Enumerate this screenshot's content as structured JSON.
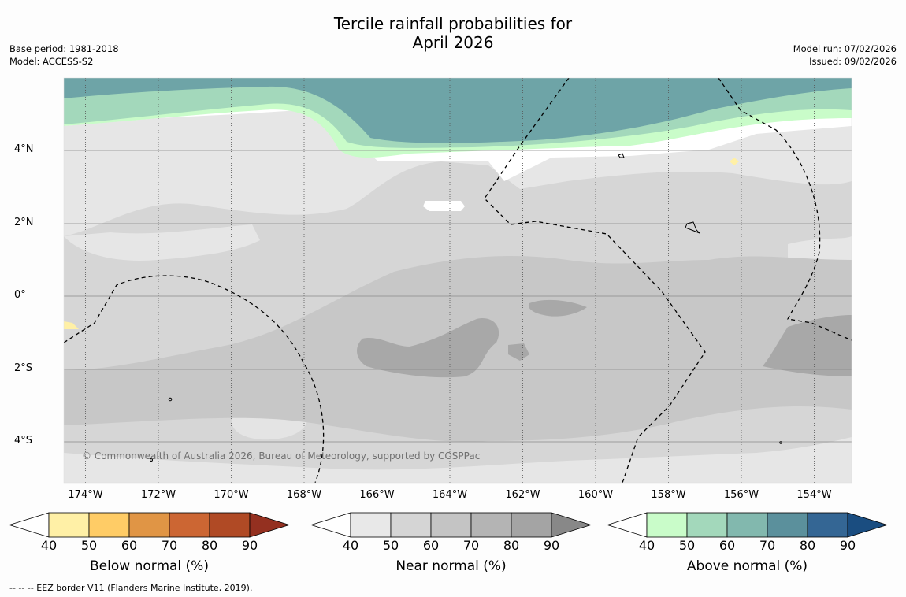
{
  "title_line1": "Tercile rainfall probabilities for",
  "title_line2": "April 2026",
  "base_period": "Base period: 1981-2018",
  "model": "Model: ACCESS-S2",
  "model_run": "Model run: 07/02/2026",
  "issued": "Issued: 09/02/2026",
  "copyright": "© Commonwealth of Australia 2026, Bureau of Meteorology, supported by COSPPac",
  "lat_labels": [
    "4°N",
    "2°N",
    "0°",
    "2°S",
    "4°S"
  ],
  "lon_labels": [
    "174°W",
    "172°W",
    "170°W",
    "168°W",
    "166°W",
    "164°W",
    "162°W",
    "160°W",
    "158°W",
    "156°W",
    "154°W"
  ],
  "colorbars": [
    {
      "label": "Below normal (%)",
      "ticks": [
        "40",
        "50",
        "60",
        "70",
        "80",
        "90"
      ],
      "colors": [
        "#fff0a6",
        "#ffcc66",
        "#e09545",
        "#cc6633",
        "#b04a25",
        "#943020"
      ]
    },
    {
      "label": "Near normal (%)",
      "ticks": [
        "40",
        "50",
        "60",
        "70",
        "80",
        "90"
      ],
      "colors": [
        "#e8e8e8",
        "#d5d5d5",
        "#c4c4c4",
        "#b4b4b4",
        "#a4a4a4",
        "#888888"
      ]
    },
    {
      "label": "Above normal (%)",
      "ticks": [
        "40",
        "50",
        "60",
        "70",
        "80",
        "90"
      ],
      "colors": [
        "#c9fcc9",
        "#a3d8bb",
        "#82b8ae",
        "#5b909c",
        "#346694",
        "#1a4d80"
      ]
    }
  ],
  "footer": "--  --  -- EEZ border V11 (Flanders Marine Institute, 2019)."
}
